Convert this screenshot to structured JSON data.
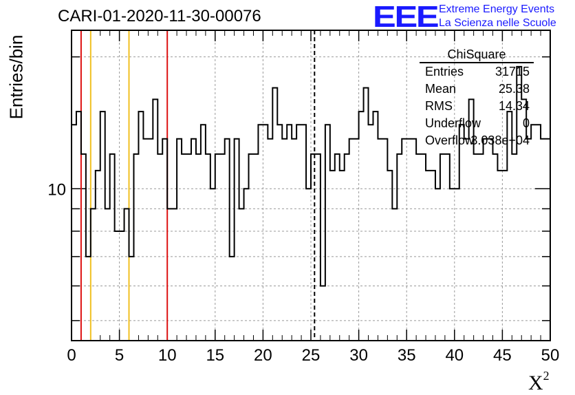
{
  "header": {
    "title": "CARI-01-2020-11-30-00076"
  },
  "logo": {
    "mark": "EEE",
    "line1": "Extreme Energy Events",
    "line2": "La Scienza nelle Scuole"
  },
  "stats_box": {
    "name": "ChiSquare",
    "rows": [
      {
        "key": "Entries",
        "value": "31715"
      },
      {
        "key": "Mean",
        "value": "25.38"
      },
      {
        "key": "RMS",
        "value": "14.34"
      },
      {
        "key": "Underflow",
        "value": "0"
      },
      {
        "key": "Overflow",
        "value": "3.038e+04"
      }
    ]
  },
  "colors": {
    "histogram": "#000000",
    "outer_cut": "#dd1111",
    "inner_cut": "#f0c020",
    "mean_line": "#000000",
    "grid": "#999999"
  },
  "chart_data": {
    "type": "bar",
    "style": "step-histogram",
    "title": "CARI-01-2020-11-30-00076",
    "xlabel": "X",
    "xlabel_superscript": "2",
    "ylabel": "Entries/bin",
    "xlim": [
      0,
      50
    ],
    "ylim": [
      4.5,
      23
    ],
    "y_scale": "log",
    "bin_width": 0.5,
    "x_ticks": [
      0,
      5,
      10,
      15,
      20,
      25,
      30,
      35,
      40,
      45,
      50
    ],
    "y_tick_labels": [
      10
    ],
    "grid": true,
    "vertical_lines": [
      {
        "x": 1,
        "color": "#dd1111",
        "style": "solid"
      },
      {
        "x": 2,
        "color": "#f0c020",
        "style": "solid"
      },
      {
        "x": 6,
        "color": "#f0c020",
        "style": "solid"
      },
      {
        "x": 10,
        "color": "#dd1111",
        "style": "solid"
      },
      {
        "x": 25.38,
        "color": "#000000",
        "style": "dashed"
      }
    ],
    "values": [
      14,
      15,
      12,
      7,
      9,
      11,
      15,
      9,
      12,
      8,
      8,
      9,
      7,
      12,
      15,
      13,
      13,
      16,
      12,
      13,
      9,
      9,
      13,
      12,
      12,
      13,
      12,
      14,
      12,
      10,
      12,
      12,
      13,
      7,
      13,
      9,
      10,
      12,
      12,
      14,
      14,
      13,
      17,
      14,
      13,
      14,
      13,
      14,
      14,
      10,
      12,
      12,
      6,
      14,
      11,
      12,
      11,
      12,
      13,
      13,
      15,
      17,
      14,
      15,
      13,
      13,
      11,
      9,
      12,
      13,
      13,
      13,
      12,
      12,
      11,
      11,
      10,
      12,
      12,
      10,
      10,
      14,
      13,
      16,
      12,
      12,
      13,
      13,
      12,
      11,
      11,
      15,
      12,
      19,
      16,
      13,
      14,
      14,
      13,
      13
    ]
  }
}
